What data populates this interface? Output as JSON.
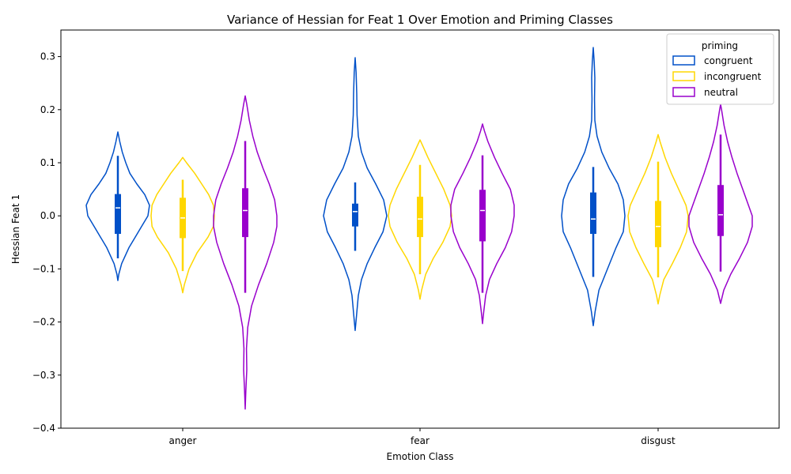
{
  "chart_data": {
    "type": "violin",
    "title": "Variance of Hessian for Feat 1 Over Emotion and Priming Classes",
    "xlabel": "Emotion Class",
    "ylabel": "Hessian Feat 1",
    "categories": [
      "anger",
      "fear",
      "disgust"
    ],
    "ylim": [
      -0.4,
      0.35
    ],
    "yticks": [
      -0.4,
      -0.3,
      -0.2,
      -0.1,
      0.0,
      0.1,
      0.2,
      0.3
    ],
    "ytick_labels": [
      "−0.4",
      "−0.3",
      "−0.2",
      "−0.1",
      "0.0",
      "0.1",
      "0.2",
      "0.3"
    ],
    "grid": false,
    "legend": {
      "title": "priming",
      "placement": "top-right"
    },
    "series": [
      {
        "name": "congruent",
        "color": "#0050c8",
        "groups": [
          {
            "category": "anger",
            "min": -0.122,
            "max": 0.158,
            "whisker_low": -0.08,
            "whisker_high": 0.113,
            "q1": -0.034,
            "median": 0.015,
            "q3": 0.041,
            "profile": [
              [
                -0.122,
                0.0
              ],
              [
                -0.11,
                0.03
              ],
              [
                -0.09,
                0.12
              ],
              [
                -0.06,
                0.35
              ],
              [
                -0.04,
                0.55
              ],
              [
                -0.02,
                0.75
              ],
              [
                0.0,
                0.95
              ],
              [
                0.02,
                1.0
              ],
              [
                0.04,
                0.85
              ],
              [
                0.06,
                0.6
              ],
              [
                0.08,
                0.38
              ],
              [
                0.1,
                0.25
              ],
              [
                0.12,
                0.14
              ],
              [
                0.14,
                0.06
              ],
              [
                0.158,
                0.0
              ]
            ]
          },
          {
            "category": "fear",
            "min": -0.216,
            "max": 0.298,
            "whisker_low": -0.066,
            "whisker_high": 0.063,
            "q1": -0.02,
            "median": 0.008,
            "q3": 0.023,
            "profile": [
              [
                -0.216,
                0.0
              ],
              [
                -0.19,
                0.04
              ],
              [
                -0.15,
                0.1
              ],
              [
                -0.12,
                0.2
              ],
              [
                -0.09,
                0.38
              ],
              [
                -0.06,
                0.62
              ],
              [
                -0.03,
                0.88
              ],
              [
                0.0,
                1.0
              ],
              [
                0.03,
                0.9
              ],
              [
                0.06,
                0.65
              ],
              [
                0.09,
                0.38
              ],
              [
                0.12,
                0.2
              ],
              [
                0.15,
                0.1
              ],
              [
                0.19,
                0.06
              ],
              [
                0.23,
                0.05
              ],
              [
                0.27,
                0.03
              ],
              [
                0.298,
                0.0
              ]
            ]
          },
          {
            "category": "disgust",
            "min": -0.207,
            "max": 0.317,
            "whisker_low": -0.115,
            "whisker_high": 0.092,
            "q1": -0.034,
            "median": -0.006,
            "q3": 0.044,
            "profile": [
              [
                -0.207,
                0.0
              ],
              [
                -0.18,
                0.06
              ],
              [
                -0.14,
                0.18
              ],
              [
                -0.1,
                0.45
              ],
              [
                -0.06,
                0.72
              ],
              [
                -0.03,
                0.95
              ],
              [
                0.0,
                1.0
              ],
              [
                0.03,
                0.95
              ],
              [
                0.06,
                0.78
              ],
              [
                0.09,
                0.5
              ],
              [
                0.12,
                0.27
              ],
              [
                0.15,
                0.12
              ],
              [
                0.18,
                0.05
              ],
              [
                0.22,
                0.04
              ],
              [
                0.26,
                0.05
              ],
              [
                0.29,
                0.03
              ],
              [
                0.317,
                0.0
              ]
            ]
          }
        ]
      },
      {
        "name": "incongruent",
        "color": "#ffd700",
        "groups": [
          {
            "category": "anger",
            "min": -0.145,
            "max": 0.11,
            "whisker_low": -0.104,
            "whisker_high": 0.068,
            "q1": -0.042,
            "median": -0.004,
            "q3": 0.034,
            "profile": [
              [
                -0.145,
                0.0
              ],
              [
                -0.13,
                0.05
              ],
              [
                -0.1,
                0.2
              ],
              [
                -0.07,
                0.45
              ],
              [
                -0.04,
                0.8
              ],
              [
                -0.02,
                0.97
              ],
              [
                0.0,
                1.0
              ],
              [
                0.02,
                0.97
              ],
              [
                0.04,
                0.82
              ],
              [
                0.06,
                0.6
              ],
              [
                0.08,
                0.38
              ],
              [
                0.1,
                0.12
              ],
              [
                0.11,
                0.0
              ]
            ]
          },
          {
            "category": "fear",
            "min": -0.157,
            "max": 0.143,
            "whisker_low": -0.11,
            "whisker_high": 0.096,
            "q1": -0.04,
            "median": -0.006,
            "q3": 0.036,
            "profile": [
              [
                -0.157,
                0.0
              ],
              [
                -0.14,
                0.05
              ],
              [
                -0.11,
                0.18
              ],
              [
                -0.08,
                0.42
              ],
              [
                -0.05,
                0.72
              ],
              [
                -0.02,
                0.95
              ],
              [
                0.0,
                1.0
              ],
              [
                0.02,
                0.95
              ],
              [
                0.05,
                0.75
              ],
              [
                0.08,
                0.5
              ],
              [
                0.11,
                0.25
              ],
              [
                0.13,
                0.1
              ],
              [
                0.143,
                0.0
              ]
            ]
          },
          {
            "category": "disgust",
            "min": -0.166,
            "max": 0.153,
            "whisker_low": -0.116,
            "whisker_high": 0.102,
            "q1": -0.059,
            "median": -0.02,
            "q3": 0.028,
            "profile": [
              [
                -0.166,
                0.0
              ],
              [
                -0.15,
                0.05
              ],
              [
                -0.12,
                0.18
              ],
              [
                -0.09,
                0.45
              ],
              [
                -0.06,
                0.7
              ],
              [
                -0.03,
                0.9
              ],
              [
                0.0,
                0.95
              ],
              [
                0.02,
                0.88
              ],
              [
                0.05,
                0.65
              ],
              [
                0.08,
                0.42
              ],
              [
                0.11,
                0.22
              ],
              [
                0.14,
                0.06
              ],
              [
                0.153,
                0.0
              ]
            ]
          }
        ]
      },
      {
        "name": "neutral",
        "color": "#9900cc",
        "groups": [
          {
            "category": "anger",
            "min": -0.364,
            "max": 0.226,
            "whisker_low": -0.145,
            "whisker_high": 0.141,
            "q1": -0.04,
            "median": 0.01,
            "q3": 0.052,
            "profile": [
              [
                -0.364,
                0.0
              ],
              [
                -0.33,
                0.02
              ],
              [
                -0.29,
                0.05
              ],
              [
                -0.25,
                0.04
              ],
              [
                -0.21,
                0.08
              ],
              [
                -0.17,
                0.2
              ],
              [
                -0.13,
                0.42
              ],
              [
                -0.09,
                0.68
              ],
              [
                -0.05,
                0.9
              ],
              [
                -0.02,
                1.0
              ],
              [
                0.0,
                1.0
              ],
              [
                0.03,
                0.93
              ],
              [
                0.06,
                0.76
              ],
              [
                0.09,
                0.56
              ],
              [
                0.12,
                0.38
              ],
              [
                0.15,
                0.24
              ],
              [
                0.18,
                0.13
              ],
              [
                0.21,
                0.05
              ],
              [
                0.226,
                0.0
              ]
            ]
          },
          {
            "category": "fear",
            "min": -0.203,
            "max": 0.173,
            "whisker_low": -0.145,
            "whisker_high": 0.114,
            "q1": -0.048,
            "median": 0.01,
            "q3": 0.049,
            "profile": [
              [
                -0.203,
                0.0
              ],
              [
                -0.18,
                0.04
              ],
              [
                -0.15,
                0.1
              ],
              [
                -0.12,
                0.22
              ],
              [
                -0.09,
                0.45
              ],
              [
                -0.06,
                0.72
              ],
              [
                -0.03,
                0.92
              ],
              [
                0.0,
                1.0
              ],
              [
                0.02,
                1.0
              ],
              [
                0.05,
                0.88
              ],
              [
                0.08,
                0.62
              ],
              [
                0.11,
                0.38
              ],
              [
                0.14,
                0.17
              ],
              [
                0.16,
                0.06
              ],
              [
                0.173,
                0.0
              ]
            ]
          },
          {
            "category": "disgust",
            "min": -0.165,
            "max": 0.21,
            "whisker_low": -0.105,
            "whisker_high": 0.153,
            "q1": -0.038,
            "median": 0.002,
            "q3": 0.058,
            "profile": [
              [
                -0.165,
                0.0
              ],
              [
                -0.14,
                0.1
              ],
              [
                -0.11,
                0.32
              ],
              [
                -0.08,
                0.6
              ],
              [
                -0.05,
                0.85
              ],
              [
                -0.02,
                1.0
              ],
              [
                0.0,
                1.0
              ],
              [
                0.02,
                0.88
              ],
              [
                0.05,
                0.7
              ],
              [
                0.08,
                0.52
              ],
              [
                0.11,
                0.36
              ],
              [
                0.14,
                0.22
              ],
              [
                0.17,
                0.11
              ],
              [
                0.2,
                0.03
              ],
              [
                0.21,
                0.0
              ]
            ]
          }
        ]
      }
    ]
  }
}
